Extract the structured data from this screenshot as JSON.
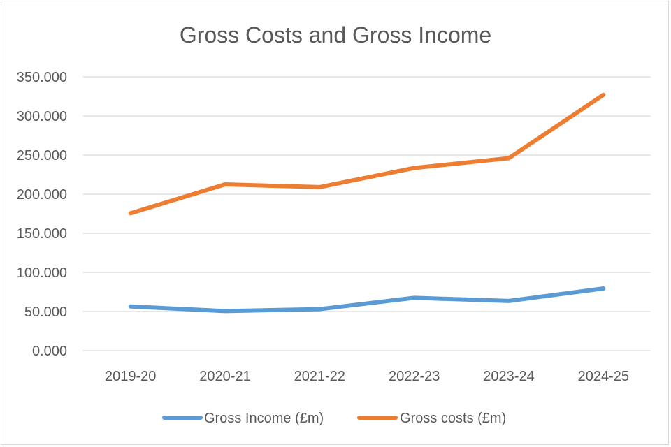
{
  "chart_data": {
    "type": "line",
    "title": "Gross Costs and Gross Income",
    "categories": [
      "2019-20",
      "2020-21",
      "2021-22",
      "2022-23",
      "2023-24",
      "2024-25"
    ],
    "ylim": [
      0,
      350
    ],
    "yticks": [
      "0.000",
      "50.000",
      "100.000",
      "150.000",
      "200.000",
      "250.000",
      "300.000",
      "350.000"
    ],
    "grid": true,
    "legend_position": "bottom",
    "series": [
      {
        "name": "Gross Income (£m)",
        "color": "#5b9bd5",
        "values": [
          56.5,
          50.5,
          53.0,
          67.5,
          63.5,
          79.5
        ]
      },
      {
        "name": "Gross costs (£m)",
        "color": "#ed7d31",
        "values": [
          175.5,
          212.5,
          209.0,
          233.5,
          246.0,
          327.0
        ]
      }
    ]
  }
}
